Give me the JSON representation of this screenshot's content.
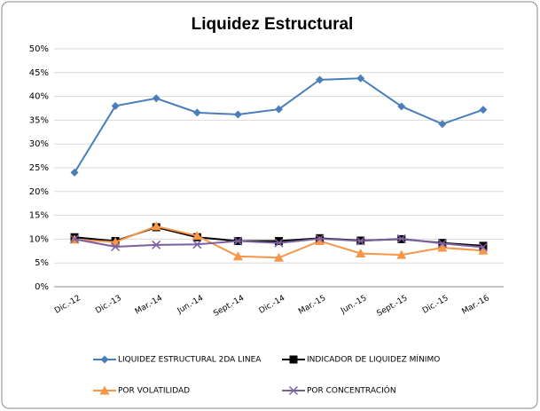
{
  "chart_data": {
    "type": "line",
    "title": "Liquidez Estructural",
    "categories": [
      "Dic.-12",
      "Dic.-13",
      "Mar.-14",
      "Jun.-14",
      "Sept.-14",
      "Dic.-14",
      "Mar.-15",
      "Jun.-15",
      "Sept.-15",
      "Dic.-15",
      "Mar.-16"
    ],
    "series": [
      {
        "name": "LIQUIDEZ ESTRUCTURAL 2DA LINEA",
        "color": "#4a7ebb",
        "marker": "diamond",
        "values": [
          24,
          38,
          39.6,
          36.6,
          36.2,
          37.3,
          43.5,
          43.8,
          37.9,
          34.2,
          37.2
        ]
      },
      {
        "name": "INDICADOR DE LIQUIDEZ MÍNIMO",
        "color": "#000000",
        "marker": "square",
        "values": [
          10.4,
          9.6,
          12.5,
          10.4,
          9.6,
          9.6,
          10.2,
          9.7,
          10.0,
          9.2,
          8.6
        ]
      },
      {
        "name": "POR VOLATILIDAD",
        "color": "#f79646",
        "marker": "triangle",
        "values": [
          9.9,
          9.4,
          12.7,
          10.7,
          6.4,
          6.1,
          9.6,
          7.0,
          6.7,
          8.2,
          7.6
        ]
      },
      {
        "name": "POR CONCENTRACIÓN",
        "color": "#7d60a0",
        "marker": "x",
        "values": [
          10.0,
          8.4,
          8.8,
          8.9,
          9.6,
          9.2,
          10.1,
          9.6,
          10.1,
          9.1,
          8.3
        ]
      }
    ],
    "ylim": [
      0,
      50
    ],
    "yticks": [
      {
        "value": 0,
        "label": "0%"
      },
      {
        "value": 5,
        "label": "5%"
      },
      {
        "value": 10,
        "label": "10%"
      },
      {
        "value": 15,
        "label": "15%"
      },
      {
        "value": 20,
        "label": "20%"
      },
      {
        "value": 25,
        "label": "25%"
      },
      {
        "value": 30,
        "label": "30%"
      },
      {
        "value": 35,
        "label": "35%"
      },
      {
        "value": 40,
        "label": "40%"
      },
      {
        "value": 45,
        "label": "45%"
      },
      {
        "value": 50,
        "label": "50%"
      }
    ],
    "grid": true,
    "legend": "bottom"
  }
}
